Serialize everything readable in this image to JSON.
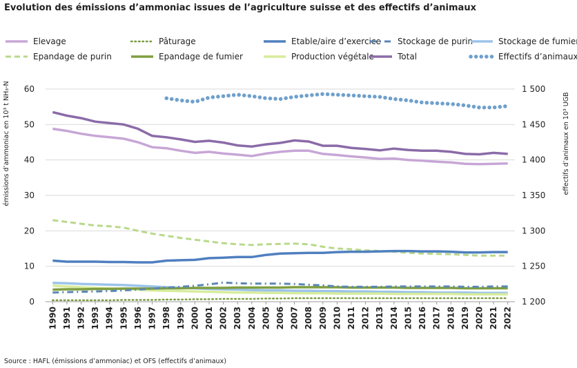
{
  "title": "Evolution des émissions d’ammoniac issues de l’agriculture suisse et des effectifs d’animaux",
  "source": "Source : HAFL (émissions d’ammoniac) et OFS (effectifs d’animaux)",
  "chart_data": {
    "type": "line",
    "title": "Evolution des émissions d’ammoniac issues de l’agriculture suisse et des effectifs d’animaux",
    "ylabel": "émissions d’ammoniac en 10³ t NH₃-N",
    "y2label": "effectifs d’animaux en 10³ UGB",
    "ylim": [
      0,
      60
    ],
    "y2lim": [
      1200,
      1500
    ],
    "yticks": [
      "0",
      "10",
      "20",
      "30",
      "40",
      "50",
      "60"
    ],
    "y2ticks": [
      "1 200",
      "1 250",
      "1 300",
      "1 350",
      "1 400",
      "1 450",
      "1 500"
    ],
    "grid": true,
    "legend_position": "top",
    "x": [
      1990,
      1991,
      1992,
      1993,
      1994,
      1995,
      1996,
      1997,
      1998,
      1999,
      2000,
      2001,
      2002,
      2003,
      2004,
      2005,
      2006,
      2007,
      2008,
      2009,
      2010,
      2011,
      2012,
      2013,
      2014,
      2015,
      2016,
      2017,
      2018,
      2019,
      2020,
      2021,
      2022
    ],
    "xticks": [
      "1990",
      "1991",
      "1992",
      "1993",
      "1994",
      "1995",
      "1996",
      "1997",
      "1998",
      "1999",
      "2000",
      "2001",
      "2002",
      "2003",
      "2004",
      "2005",
      "2006",
      "2007",
      "2008",
      "2009",
      "2010",
      "2011",
      "2012",
      "2013",
      "2014",
      "2015",
      "2016",
      "2017",
      "2018",
      "2019",
      "2020",
      "2021",
      "2022"
    ],
    "series": [
      {
        "name": "Elevage",
        "axis": "left",
        "color": "#c7a6d6",
        "style": "solid",
        "values": [
          48.8,
          48.2,
          47.4,
          46.8,
          46.4,
          46.0,
          45.0,
          43.6,
          43.3,
          42.6,
          42.0,
          42.3,
          41.8,
          41.5,
          41.1,
          41.8,
          42.3,
          42.6,
          42.6,
          41.7,
          41.4,
          41.0,
          40.7,
          40.3,
          40.4,
          40.0,
          39.8,
          39.5,
          39.3,
          38.9,
          38.8,
          38.9,
          39.0
        ]
      },
      {
        "name": "Pâturage",
        "axis": "left",
        "color": "#7a9a3e",
        "style": "dotted",
        "values": [
          0.4,
          0.4,
          0.4,
          0.4,
          0.4,
          0.5,
          0.5,
          0.5,
          0.6,
          0.6,
          0.7,
          0.7,
          0.8,
          0.8,
          0.8,
          0.9,
          0.9,
          1.0,
          1.0,
          1.0,
          1.0,
          1.0,
          1.0,
          1.0,
          1.0,
          1.0,
          1.0,
          1.0,
          1.0,
          1.0,
          1.0,
          1.0,
          1.0
        ]
      },
      {
        "name": "Etable/aire d’exercice",
        "axis": "left",
        "color": "#4f7fbf",
        "style": "solid",
        "values": [
          11.6,
          11.3,
          11.3,
          11.3,
          11.2,
          11.2,
          11.1,
          11.1,
          11.6,
          11.7,
          11.8,
          12.3,
          12.4,
          12.6,
          12.6,
          13.2,
          13.6,
          13.7,
          13.8,
          13.8,
          14.0,
          14.1,
          14.1,
          14.2,
          14.3,
          14.3,
          14.2,
          14.2,
          14.1,
          13.9,
          13.9,
          14.0,
          14.0
        ]
      },
      {
        "name": "Stockage de purin",
        "axis": "left",
        "color": "#5a86b5",
        "style": "dashdot",
        "values": [
          2.6,
          2.7,
          2.8,
          2.9,
          3.0,
          3.2,
          3.4,
          3.7,
          4.0,
          4.2,
          4.5,
          4.9,
          5.4,
          5.2,
          5.1,
          5.1,
          5.1,
          5.0,
          4.8,
          4.6,
          4.3,
          4.2,
          4.2,
          4.2,
          4.3,
          4.3,
          4.3,
          4.3,
          4.3,
          4.2,
          4.2,
          4.3,
          4.3
        ]
      },
      {
        "name": "Stockage de fumier",
        "axis": "left",
        "color": "#9cc3ea",
        "style": "solid",
        "values": [
          5.3,
          5.2,
          5.0,
          4.9,
          4.8,
          4.7,
          4.5,
          4.3,
          4.1,
          3.9,
          3.8,
          3.6,
          3.5,
          3.4,
          3.3,
          3.2,
          3.2,
          3.1,
          3.1,
          3.0,
          3.0,
          2.9,
          2.9,
          2.8,
          2.8,
          2.7,
          2.7,
          2.6,
          2.6,
          2.6,
          2.5,
          2.5,
          2.5
        ]
      },
      {
        "name": "Epandage de purin",
        "axis": "left",
        "color": "#b8d98a",
        "style": "dashed",
        "values": [
          23.0,
          22.5,
          22.0,
          21.5,
          21.3,
          20.9,
          20.0,
          19.2,
          18.6,
          18.0,
          17.5,
          17.0,
          16.5,
          16.2,
          16.0,
          16.2,
          16.3,
          16.4,
          16.2,
          15.5,
          15.0,
          14.8,
          14.5,
          14.3,
          14.1,
          13.8,
          13.6,
          13.5,
          13.4,
          13.2,
          13.0,
          13.0,
          13.0
        ]
      },
      {
        "name": "Epandage de fumier",
        "axis": "left",
        "color": "#7f9e40",
        "style": "solid",
        "values": [
          3.4,
          3.5,
          3.5,
          3.6,
          3.6,
          3.7,
          3.7,
          3.7,
          3.8,
          3.8,
          3.9,
          3.9,
          3.9,
          4.0,
          4.0,
          4.0,
          4.0,
          4.1,
          4.1,
          4.1,
          4.1,
          4.0,
          4.0,
          4.0,
          4.0,
          3.9,
          3.9,
          3.9,
          3.9,
          3.8,
          3.8,
          3.8,
          3.8
        ]
      },
      {
        "name": "Production végétale",
        "axis": "left",
        "color": "#d7ec9c",
        "style": "solid",
        "values": [
          4.5,
          4.3,
          4.1,
          3.9,
          3.8,
          3.6,
          3.4,
          3.2,
          3.1,
          3.0,
          2.9,
          2.8,
          2.7,
          2.6,
          2.6,
          2.5,
          2.5,
          2.4,
          2.4,
          2.4,
          2.3,
          2.3,
          2.3,
          2.3,
          2.2,
          2.2,
          2.2,
          2.2,
          2.2,
          2.1,
          2.1,
          2.1,
          2.1
        ]
      },
      {
        "name": "Total",
        "axis": "left",
        "color": "#8b6ba8",
        "style": "solid",
        "values": [
          53.5,
          52.5,
          51.8,
          50.8,
          50.4,
          50.0,
          48.8,
          46.8,
          46.4,
          45.8,
          45.1,
          45.4,
          44.9,
          44.1,
          43.8,
          44.4,
          44.8,
          45.5,
          45.2,
          44.0,
          44.0,
          43.4,
          43.1,
          42.7,
          43.2,
          42.8,
          42.6,
          42.6,
          42.3,
          41.7,
          41.6,
          42.0,
          41.7
        ]
      },
      {
        "name": "Effectifs d’animaux",
        "axis": "right",
        "color": "#6fa0cc",
        "style": "dots",
        "values": [
          null,
          null,
          null,
          null,
          null,
          null,
          null,
          null,
          1487,
          1484,
          1482,
          1488,
          1490,
          1492,
          1490,
          1487,
          1486,
          1489,
          1491,
          1493,
          1492,
          1491,
          1490,
          1489,
          1486,
          1484,
          1481,
          1480,
          1479,
          1477,
          1474,
          1474,
          1476
        ]
      }
    ]
  }
}
